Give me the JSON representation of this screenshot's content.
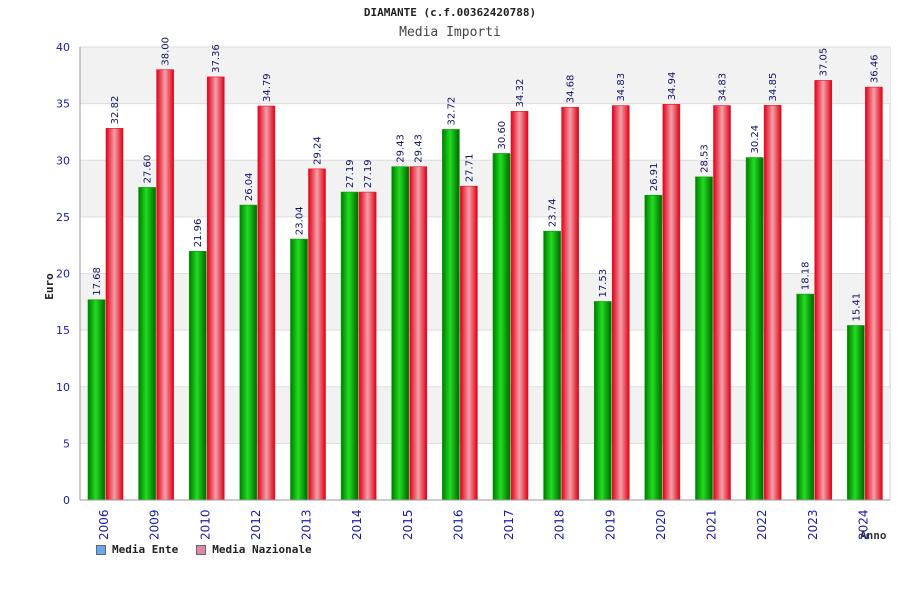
{
  "chart_data": {
    "type": "bar",
    "title": "DIAMANTE (c.f.00362420788)",
    "subtitle": "Media Importi",
    "xlabel": "Anno",
    "ylabel": "Euro",
    "ylim": [
      0,
      40
    ],
    "yticks": [
      0,
      5,
      10,
      15,
      20,
      25,
      30,
      35,
      40
    ],
    "categories": [
      "2006",
      "2009",
      "2010",
      "2012",
      "2013",
      "2014",
      "2015",
      "2016",
      "2017",
      "2018",
      "2019",
      "2020",
      "2021",
      "2022",
      "2023",
      "2024"
    ],
    "series": [
      {
        "name": "Media Ente",
        "values": [
          17.68,
          27.6,
          21.96,
          26.04,
          23.04,
          27.19,
          29.43,
          32.72,
          30.6,
          23.74,
          17.53,
          26.91,
          28.53,
          30.24,
          18.18,
          15.41
        ],
        "labels": [
          "17.68",
          "27.60",
          "21.96",
          "26.04",
          "23.04",
          "27.19",
          "29.43",
          "32.72",
          "30.60",
          "23.74",
          "17.53",
          "26.91",
          "28.53",
          "30.24",
          "18.18",
          "15.41"
        ]
      },
      {
        "name": "Media Nazionale",
        "values": [
          32.82,
          38.0,
          37.36,
          34.79,
          29.24,
          27.19,
          29.43,
          27.71,
          34.32,
          34.68,
          34.83,
          34.94,
          34.83,
          34.85,
          37.05,
          36.46
        ],
        "labels": [
          "32.82",
          "38.00",
          "37.36",
          "34.79",
          "29.24",
          "27.19",
          "29.43",
          "27.71",
          "34.32",
          "34.68",
          "34.83",
          "34.94",
          "34.83",
          "34.85",
          "37.05",
          "36.46"
        ]
      }
    ],
    "legend": [
      {
        "name": "Media Ente",
        "color": "#66aaee"
      },
      {
        "name": "Media Nazionale",
        "color": "#dd88aa"
      }
    ],
    "colors": {
      "ente": "#00a000",
      "nazionale": "#ee1122"
    },
    "legend_position": "bottom-left",
    "grid": true
  }
}
